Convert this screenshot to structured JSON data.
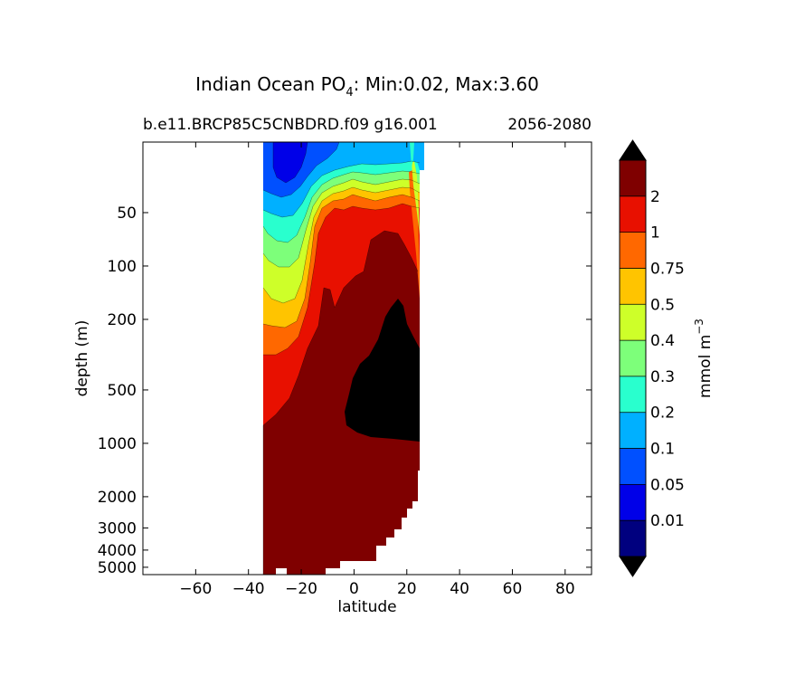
{
  "chart_data": {
    "type": "filled-contour",
    "title_main": "Indian Ocean PO",
    "title_sub": "4",
    "title_stats": ": Min:0.02, Max:3.60",
    "case_label": "b.e11.BRCP85C5CNBDRD.f09 g16.001",
    "period_label": "2056-2080",
    "xlabel": "latitude",
    "ylabel": "depth (m)",
    "xlim": [
      -80,
      90
    ],
    "ylim": [
      5500,
      20
    ],
    "y_scale": "log",
    "x_ticks": [
      -60,
      -40,
      -20,
      0,
      20,
      40,
      60,
      80
    ],
    "x_tick_labels": [
      "−60",
      "−40",
      "−20",
      "0",
      "20",
      "40",
      "60",
      "80"
    ],
    "y_ticks": [
      50,
      100,
      200,
      500,
      1000,
      2000,
      3000,
      4000,
      5000
    ],
    "y_tick_labels": [
      "50",
      "100",
      "200",
      "500",
      "1000",
      "2000",
      "3000",
      "4000",
      "5000"
    ],
    "colorbar": {
      "label": "mmol m",
      "label_exp": "−3",
      "levels": [
        "0.01",
        "0.05",
        "0.1",
        "0.2",
        "0.3",
        "0.4",
        "0.5",
        "0.75",
        "1",
        "2"
      ],
      "colors": [
        "#00007f",
        "#0000e8",
        "#0050ff",
        "#00b0ff",
        "#29ffce",
        "#7dff7a",
        "#ceff29",
        "#ffc400",
        "#ff6800",
        "#e81000",
        "#7f0000"
      ],
      "over_color": "#000000",
      "under_color": "#000000"
    }
  }
}
